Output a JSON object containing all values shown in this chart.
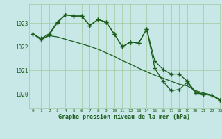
{
  "title": "Graphe pression niveau de la mer (hPa)",
  "bg_color": "#c8e8e8",
  "grid_color": "#a0c8a0",
  "line_color": "#1a5c1a",
  "xlim": [
    -0.5,
    23
  ],
  "ylim": [
    1019.4,
    1023.8
  ],
  "yticks": [
    1020,
    1021,
    1022,
    1023
  ],
  "xticks": [
    0,
    1,
    2,
    3,
    4,
    5,
    6,
    7,
    8,
    9,
    10,
    11,
    12,
    13,
    14,
    15,
    16,
    17,
    18,
    19,
    20,
    21,
    22,
    23
  ],
  "series1": [
    1022.55,
    1022.35,
    1022.55,
    1023.05,
    1023.35,
    1023.3,
    1023.3,
    1022.9,
    1023.15,
    1023.05,
    1022.55,
    1022.0,
    1022.2,
    1022.15,
    1022.75,
    1021.1,
    1020.55,
    1020.15,
    1020.2,
    1020.5,
    1020.05,
    1020.0,
    1019.95,
    1019.75
  ],
  "series2": [
    1022.55,
    1022.3,
    1022.5,
    1023.0,
    1023.35,
    1023.3,
    1023.3,
    1022.9,
    1023.15,
    1023.05,
    1022.55,
    1022.0,
    1022.2,
    1022.15,
    1022.75,
    1021.4,
    1021.05,
    1020.85,
    1020.85,
    1020.55,
    1020.1,
    1020.0,
    1019.95,
    1019.75
  ],
  "series3": [
    1022.55,
    1022.3,
    1022.47,
    1022.42,
    1022.32,
    1022.22,
    1022.12,
    1022.02,
    1021.9,
    1021.75,
    1021.6,
    1021.42,
    1021.27,
    1021.1,
    1020.95,
    1020.8,
    1020.68,
    1020.55,
    1020.42,
    1020.35,
    1020.15,
    1020.05,
    1019.97,
    1019.78
  ]
}
